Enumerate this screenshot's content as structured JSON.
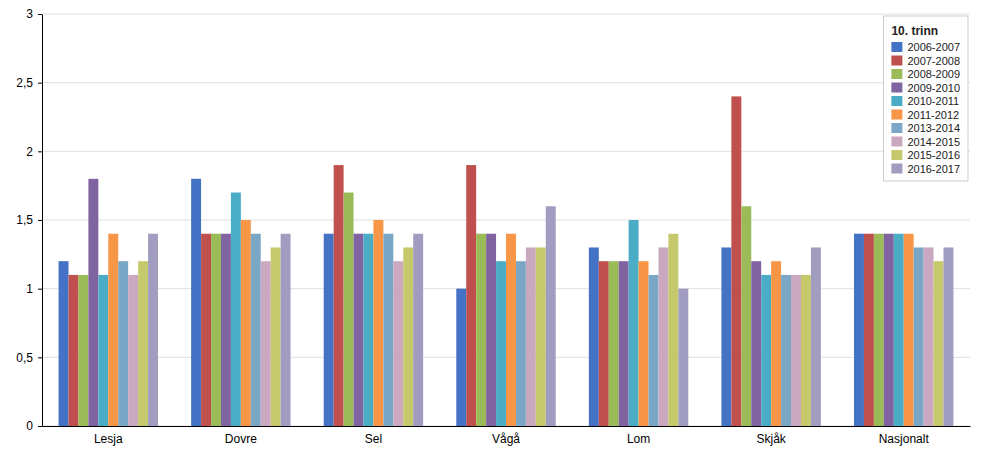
{
  "chart_data": {
    "type": "bar",
    "categories": [
      "Lesja",
      "Dovre",
      "Sel",
      "Vågå",
      "Lom",
      "Skjåk",
      "Nasjonalt"
    ],
    "series": [
      {
        "name": "2006-2007",
        "color": "#4472C4",
        "values": [
          1.2,
          1.8,
          1.4,
          1.0,
          1.3,
          1.3,
          1.4
        ]
      },
      {
        "name": "2007-2008",
        "color": "#C0504D",
        "values": [
          1.1,
          1.4,
          1.9,
          1.9,
          1.2,
          2.4,
          1.4
        ]
      },
      {
        "name": "2008-2009",
        "color": "#9BBB59",
        "values": [
          1.1,
          1.4,
          1.7,
          1.4,
          1.2,
          1.6,
          1.4
        ]
      },
      {
        "name": "2009-2010",
        "color": "#8064A2",
        "values": [
          1.8,
          1.4,
          1.4,
          1.4,
          1.2,
          1.2,
          1.4
        ]
      },
      {
        "name": "2010-2011",
        "color": "#4BACC6",
        "values": [
          1.1,
          1.7,
          1.4,
          1.2,
          1.5,
          1.1,
          1.4
        ]
      },
      {
        "name": "2011-2012",
        "color": "#F79646",
        "values": [
          1.4,
          1.5,
          1.5,
          1.4,
          1.2,
          1.2,
          1.4
        ]
      },
      {
        "name": "2013-2014",
        "color": "#7BA7C7",
        "values": [
          1.2,
          1.4,
          1.4,
          1.2,
          1.1,
          1.1,
          1.3
        ]
      },
      {
        "name": "2014-2015",
        "color": "#C9A8C0",
        "values": [
          1.1,
          1.2,
          1.2,
          1.3,
          1.3,
          1.1,
          1.3
        ]
      },
      {
        "name": "2015-2016",
        "color": "#C6C96B",
        "values": [
          1.2,
          1.3,
          1.3,
          1.3,
          1.4,
          1.1,
          1.2
        ]
      },
      {
        "name": "2016-2017",
        "color": "#A09DC0",
        "values": [
          1.4,
          1.4,
          1.4,
          1.6,
          1.0,
          1.3,
          1.3
        ]
      }
    ],
    "ylim": [
      0,
      3
    ],
    "yticks": [
      0,
      {
        "value": 0.5,
        "label": "0,5"
      },
      1,
      {
        "value": 1.5,
        "label": "1,5"
      },
      2,
      {
        "value": 2.5,
        "label": "2,5"
      },
      3
    ],
    "grid": true,
    "legend": "upper right",
    "legend_title": "10. trinn"
  }
}
